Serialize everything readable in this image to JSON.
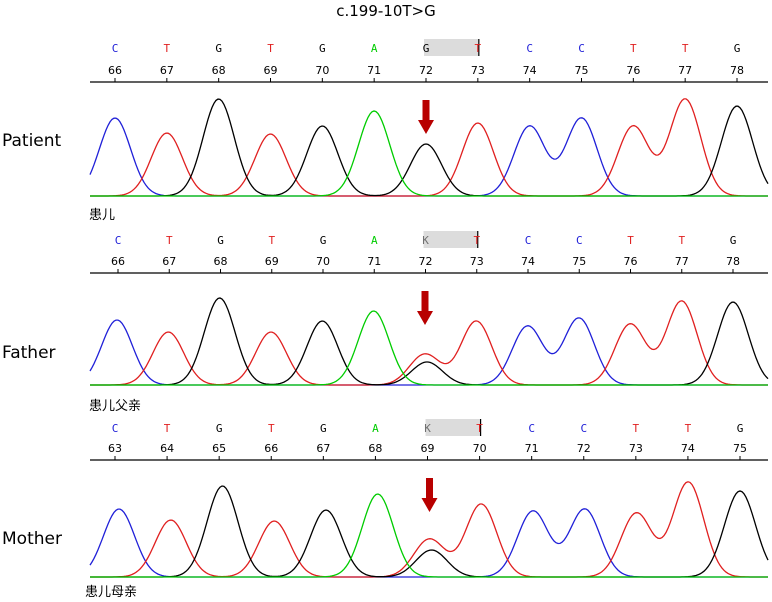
{
  "title": "c.199-10T>G",
  "colors": {
    "A": "#00cc00",
    "C": "#2020d8",
    "G": "#000000",
    "T": "#e02020",
    "arrow": "#b80000",
    "highlight": "#dcdcdc"
  },
  "tracks": [
    {
      "label": "Patient",
      "caption": "患儿",
      "bases": [
        "C",
        "T",
        "G",
        "T",
        "G",
        "A",
        "G",
        "T",
        "C",
        "C",
        "T",
        "T",
        "G"
      ],
      "positions": [
        "66",
        "67",
        "68",
        "69",
        "70",
        "71",
        "72",
        "73",
        "74",
        "75",
        "76",
        "77",
        "78"
      ],
      "variant_index": 6,
      "peaks": [
        {
          "base": "C",
          "height": 0.78
        },
        {
          "base": "T",
          "height": 0.63
        },
        {
          "base": "G",
          "height": 0.97
        },
        {
          "base": "T",
          "height": 0.62
        },
        {
          "base": "G",
          "height": 0.7
        },
        {
          "base": "A",
          "height": 0.85
        },
        {
          "base": "G",
          "height": 0.52
        },
        {
          "base": "T",
          "height": 0.73
        },
        {
          "base": "C",
          "height": 0.7
        },
        {
          "base": "C",
          "height": 0.78
        },
        {
          "base": "T",
          "height": 0.7
        },
        {
          "base": "T",
          "height": 0.97
        },
        {
          "base": "G",
          "height": 0.9
        }
      ]
    },
    {
      "label": "Father",
      "caption": "患儿父亲",
      "bases": [
        "C",
        "T",
        "G",
        "T",
        "G",
        "A",
        "K",
        "T",
        "C",
        "C",
        "T",
        "T",
        "G"
      ],
      "positions": [
        "66",
        "67",
        "68",
        "69",
        "70",
        "71",
        "72",
        "73",
        "74",
        "75",
        "76",
        "77",
        "78"
      ],
      "variant_index": 6,
      "peaks": [
        {
          "base": "C",
          "height": 0.65
        },
        {
          "base": "T",
          "height": 0.53
        },
        {
          "base": "G",
          "height": 0.87
        },
        {
          "base": "T",
          "height": 0.53
        },
        {
          "base": "G",
          "height": 0.64
        },
        {
          "base": "A",
          "height": 0.74
        },
        {
          "base": "T",
          "height": 0.31
        },
        {
          "base": "G",
          "height": 0.23
        },
        {
          "base": "T",
          "height": 0.64
        },
        {
          "base": "C",
          "height": 0.59
        },
        {
          "base": "C",
          "height": 0.67
        },
        {
          "base": "T",
          "height": 0.61
        },
        {
          "base": "T",
          "height": 0.84
        },
        {
          "base": "G",
          "height": 0.83
        }
      ]
    },
    {
      "label": "Mother",
      "caption": "患儿母亲",
      "bases": [
        "C",
        "T",
        "G",
        "T",
        "G",
        "A",
        "K",
        "T",
        "C",
        "C",
        "T",
        "T",
        "G"
      ],
      "positions": [
        "63",
        "64",
        "65",
        "66",
        "67",
        "68",
        "69",
        "70",
        "71",
        "72",
        "73",
        "74",
        "75"
      ],
      "variant_index": 6,
      "peaks": [
        {
          "base": "C",
          "height": 0.68
        },
        {
          "base": "T",
          "height": 0.57
        },
        {
          "base": "G",
          "height": 0.91
        },
        {
          "base": "T",
          "height": 0.56
        },
        {
          "base": "G",
          "height": 0.67
        },
        {
          "base": "A",
          "height": 0.83
        },
        {
          "base": "T",
          "height": 0.38
        },
        {
          "base": "G",
          "height": 0.27
        },
        {
          "base": "T",
          "height": 0.73
        },
        {
          "base": "C",
          "height": 0.66
        },
        {
          "base": "C",
          "height": 0.68
        },
        {
          "base": "T",
          "height": 0.64
        },
        {
          "base": "T",
          "height": 0.95
        },
        {
          "base": "G",
          "height": 0.86
        }
      ]
    }
  ]
}
